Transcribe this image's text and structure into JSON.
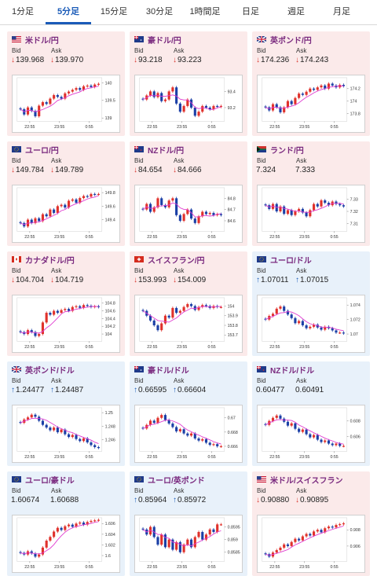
{
  "tabs": [
    {
      "label": "1分足",
      "active": false
    },
    {
      "label": "5分足",
      "active": true
    },
    {
      "label": "15分足",
      "active": false
    },
    {
      "label": "30分足",
      "active": false
    },
    {
      "label": "1時間足",
      "active": false
    },
    {
      "label": "日足",
      "active": false
    },
    {
      "label": "週足",
      "active": false
    },
    {
      "label": "月足",
      "active": false
    }
  ],
  "labels": {
    "bid": "Bid",
    "ask": "Ask"
  },
  "time_labels": [
    "22:55",
    "23:55",
    "0:55"
  ],
  "colors": {
    "tab_active": "#1a5bb8",
    "pair_name": "#7a2a7f",
    "down_arrow": "#d9342b",
    "up_arrow": "#1a5bb8",
    "candle_up": "#e0312b",
    "candle_down": "#1b3fa6",
    "moving_average": "#e03ad0",
    "card_red_bg": "#fbeaea",
    "card_blue_bg": "#e8f1fa"
  },
  "pairs": [
    {
      "name": "米ドル/円",
      "flag": "us",
      "theme": "red",
      "bid": "139.968",
      "ask": "139.970",
      "bid_dir": "down",
      "ask_dir": "down",
      "chart_data": {
        "type": "candlestick",
        "yticks": [
          "140",
          "139.5",
          "139"
        ],
        "ylim": [
          138.95,
          140.1
        ],
        "closes": [
          139.25,
          139.1,
          139.3,
          139.2,
          139.05,
          139.35,
          139.45,
          139.4,
          139.55,
          139.65,
          139.6,
          139.55,
          139.7,
          139.75,
          139.8,
          139.85,
          139.8,
          139.9,
          139.92,
          139.88,
          139.95,
          139.97
        ]
      }
    },
    {
      "name": "豪ドル/円",
      "flag": "au",
      "theme": "red",
      "bid": "93.218",
      "ask": "93.223",
      "bid_dir": "down",
      "ask_dir": "down",
      "chart_data": {
        "type": "candlestick",
        "yticks": [
          "93.4",
          "93.2"
        ],
        "ylim": [
          93.05,
          93.55
        ],
        "closes": [
          93.3,
          93.35,
          93.4,
          93.33,
          93.38,
          93.28,
          93.3,
          93.4,
          93.45,
          93.25,
          93.15,
          93.22,
          93.3,
          93.2,
          93.1,
          93.15,
          93.22,
          93.2,
          93.18,
          93.22,
          93.21,
          93.22
        ]
      }
    },
    {
      "name": "英ポンド/円",
      "flag": "gb",
      "theme": "red",
      "bid": "174.236",
      "ask": "174.243",
      "bid_dir": "down",
      "ask_dir": "down",
      "chart_data": {
        "type": "candlestick",
        "yticks": [
          "174.2",
          "174",
          "173.8"
        ],
        "ylim": [
          173.7,
          174.35
        ],
        "closes": [
          173.9,
          173.85,
          173.95,
          173.9,
          173.82,
          173.9,
          174.0,
          173.95,
          174.05,
          174.12,
          174.1,
          174.15,
          174.2,
          174.18,
          174.22,
          174.25,
          174.2,
          174.28,
          174.25,
          174.22,
          174.26,
          174.24
        ]
      }
    },
    {
      "name": "ユーロ/円",
      "flag": "eu",
      "theme": "red",
      "bid": "149.784",
      "ask": "149.789",
      "bid_dir": "down",
      "ask_dir": "down",
      "chart_data": {
        "type": "candlestick",
        "yticks": [
          "149.8",
          "149.6",
          "149.4"
        ],
        "ylim": [
          149.25,
          149.85
        ],
        "closes": [
          149.35,
          149.3,
          149.4,
          149.35,
          149.42,
          149.38,
          149.48,
          149.45,
          149.55,
          149.5,
          149.6,
          149.62,
          149.58,
          149.68,
          149.7,
          149.65,
          149.72,
          149.75,
          149.74,
          149.78,
          149.77,
          149.78
        ]
      }
    },
    {
      "name": "NZドル/円",
      "flag": "nz",
      "theme": "red",
      "bid": "84.654",
      "ask": "84.666",
      "bid_dir": "down",
      "ask_dir": "down",
      "chart_data": {
        "type": "candlestick",
        "yticks": [
          "84.8",
          "84.7",
          "84.6"
        ],
        "ylim": [
          84.52,
          84.88
        ],
        "closes": [
          84.7,
          84.75,
          84.68,
          84.72,
          84.8,
          84.74,
          84.72,
          84.78,
          84.8,
          84.65,
          84.6,
          84.66,
          84.7,
          84.62,
          84.58,
          84.64,
          84.68,
          84.66,
          84.67,
          84.65,
          84.66,
          84.65
        ]
      }
    },
    {
      "name": "ランド/円",
      "flag": "za",
      "theme": "red",
      "bid": "7.324",
      "ask": "7.333",
      "bid_dir": "none",
      "ask_dir": "none",
      "chart_data": {
        "type": "candlestick",
        "yticks": [
          "7.33",
          "7.32",
          "7.31"
        ],
        "ylim": [
          7.305,
          7.338
        ],
        "closes": [
          7.325,
          7.322,
          7.326,
          7.32,
          7.324,
          7.318,
          7.321,
          7.317,
          7.32,
          7.322,
          7.319,
          7.316,
          7.321,
          7.326,
          7.324,
          7.329,
          7.327,
          7.325,
          7.328,
          7.326,
          7.325,
          7.324
        ]
      }
    },
    {
      "name": "カナダドル/円",
      "flag": "ca",
      "theme": "red",
      "bid": "104.704",
      "ask": "104.719",
      "bid_dir": "down",
      "ask_dir": "down",
      "chart_data": {
        "type": "candlestick",
        "yticks": [
          "104.8",
          "104.6",
          "104.4",
          "104.2",
          "104"
        ],
        "ylim": [
          103.85,
          104.9
        ],
        "closes": [
          104.05,
          104.0,
          104.1,
          104.05,
          103.95,
          104.0,
          104.3,
          104.55,
          104.5,
          104.6,
          104.55,
          104.62,
          104.65,
          104.6,
          104.7,
          104.72,
          104.68,
          104.75,
          104.73,
          104.7,
          104.72,
          104.7
        ]
      }
    },
    {
      "name": "スイスフラン/円",
      "flag": "ch",
      "theme": "red",
      "bid": "153.993",
      "ask": "154.009",
      "bid_dir": "down",
      "ask_dir": "down",
      "chart_data": {
        "type": "candlestick",
        "yticks": [
          "154",
          "153.9",
          "153.8",
          "153.7"
        ],
        "ylim": [
          153.65,
          154.07
        ],
        "closes": [
          153.95,
          153.9,
          153.85,
          153.8,
          153.75,
          153.82,
          153.9,
          153.88,
          153.98,
          153.93,
          153.95,
          153.99,
          154.02,
          154.0,
          153.96,
          153.99,
          154.01,
          154.0,
          153.98,
          154.0,
          153.99,
          153.99
        ]
      }
    },
    {
      "name": "ユーロ/ドル",
      "flag": "eu",
      "theme": "blue",
      "bid": "1.07011",
      "ask": "1.07015",
      "bid_dir": "up",
      "ask_dir": "up",
      "chart_data": {
        "type": "candlestick",
        "yticks": [
          "1.074",
          "1.072",
          "1.07"
        ],
        "ylim": [
          1.0692,
          1.0748
        ],
        "closes": [
          1.072,
          1.0725,
          1.0728,
          1.0735,
          1.0738,
          1.0732,
          1.0727,
          1.0722,
          1.0715,
          1.0718,
          1.0712,
          1.0708,
          1.071,
          1.0713,
          1.0709,
          1.0706,
          1.071,
          1.0708,
          1.0705,
          1.0702,
          1.0702,
          1.0701
        ]
      }
    },
    {
      "name": "英ポンド/ドル",
      "flag": "gb",
      "theme": "blue",
      "bid": "1.24477",
      "ask": "1.24487",
      "bid_dir": "up",
      "ask_dir": "up",
      "chart_data": {
        "type": "candlestick",
        "yticks": [
          "1.25",
          "1.248",
          "1.246"
        ],
        "ylim": [
          1.2445,
          1.2505
        ],
        "closes": [
          1.2485,
          1.249,
          1.2493,
          1.2497,
          1.2494,
          1.2488,
          1.2482,
          1.2478,
          1.2474,
          1.2478,
          1.2471,
          1.2475,
          1.2468,
          1.2464,
          1.2467,
          1.2461,
          1.2458,
          1.2462,
          1.2456,
          1.2452,
          1.2449,
          1.2448
        ]
      }
    },
    {
      "name": "豪ドル/ドル",
      "flag": "au",
      "theme": "blue",
      "bid": "0.66595",
      "ask": "0.66604",
      "bid_dir": "up",
      "ask_dir": "up",
      "chart_data": {
        "type": "candlestick",
        "yticks": [
          "0.67",
          "0.668",
          "0.666"
        ],
        "ylim": [
          0.6655,
          0.6712
        ],
        "closes": [
          0.6685,
          0.669,
          0.6696,
          0.6693,
          0.67,
          0.6704,
          0.6697,
          0.6692,
          0.6687,
          0.6681,
          0.6684,
          0.6678,
          0.6675,
          0.6678,
          0.6671,
          0.6668,
          0.667,
          0.6665,
          0.6662,
          0.6663,
          0.666,
          0.666
        ]
      }
    },
    {
      "name": "NZドル/ドル",
      "flag": "nz",
      "theme": "blue",
      "bid": "0.60477",
      "ask": "0.60491",
      "bid_dir": "none",
      "ask_dir": "none",
      "chart_data": {
        "type": "candlestick",
        "yticks": [
          "0.608",
          "0.606"
        ],
        "ylim": [
          0.6043,
          0.6095
        ],
        "closes": [
          0.6075,
          0.608,
          0.6084,
          0.6087,
          0.6083,
          0.6079,
          0.6074,
          0.6077,
          0.607,
          0.6066,
          0.6069,
          0.6063,
          0.6059,
          0.6062,
          0.6056,
          0.6053,
          0.6055,
          0.6051,
          0.6049,
          0.6051,
          0.6048,
          0.6048
        ]
      }
    },
    {
      "name": "ユーロ/豪ドル",
      "flag": "eu",
      "theme": "blue",
      "bid": "1.60674",
      "ask": "1.60688",
      "bid_dir": "none",
      "ask_dir": "none",
      "chart_data": {
        "type": "candlestick",
        "yticks": [
          "1.606",
          "1.604",
          "1.602",
          "1.6"
        ],
        "ylim": [
          1.5992,
          1.6068
        ],
        "closes": [
          1.6005,
          1.6002,
          1.6008,
          1.6004,
          1.5998,
          1.6002,
          1.6015,
          1.6028,
          1.6035,
          1.6045,
          1.6052,
          1.6048,
          1.6055,
          1.6058,
          1.6054,
          1.606,
          1.6062,
          1.6058,
          1.6063,
          1.6065,
          1.6066,
          1.6067
        ]
      }
    },
    {
      "name": "ユーロ/英ポンド",
      "flag": "eu",
      "theme": "blue",
      "bid": "0.85964",
      "ask": "0.85972",
      "bid_dir": "up",
      "ask_dir": "up",
      "chart_data": {
        "type": "candlestick",
        "yticks": [
          "0.8595",
          "0.859",
          "0.8585"
        ],
        "ylim": [
          0.8582,
          0.8598
        ],
        "closes": [
          0.8594,
          0.8592,
          0.8595,
          0.8591,
          0.8588,
          0.8592,
          0.8587,
          0.859,
          0.8586,
          0.8589,
          0.8585,
          0.8588,
          0.859,
          0.8587,
          0.8591,
          0.8593,
          0.859,
          0.8592,
          0.8594,
          0.8593,
          0.8596,
          0.8596
        ]
      }
    },
    {
      "name": "米ドル/スイスフラン",
      "flag": "us",
      "theme": "red",
      "bid": "0.90880",
      "ask": "0.90895",
      "bid_dir": "down",
      "ask_dir": "down",
      "chart_data": {
        "type": "candlestick",
        "yticks": [
          "0.908",
          "0.906"
        ],
        "ylim": [
          0.9043,
          0.9093
        ],
        "closes": [
          0.905,
          0.9047,
          0.9052,
          0.9055,
          0.9058,
          0.9062,
          0.906,
          0.9065,
          0.9069,
          0.9067,
          0.9072,
          0.9075,
          0.9073,
          0.9078,
          0.908,
          0.9077,
          0.9082,
          0.9084,
          0.9083,
          0.9086,
          0.9087,
          0.9088
        ]
      }
    }
  ]
}
